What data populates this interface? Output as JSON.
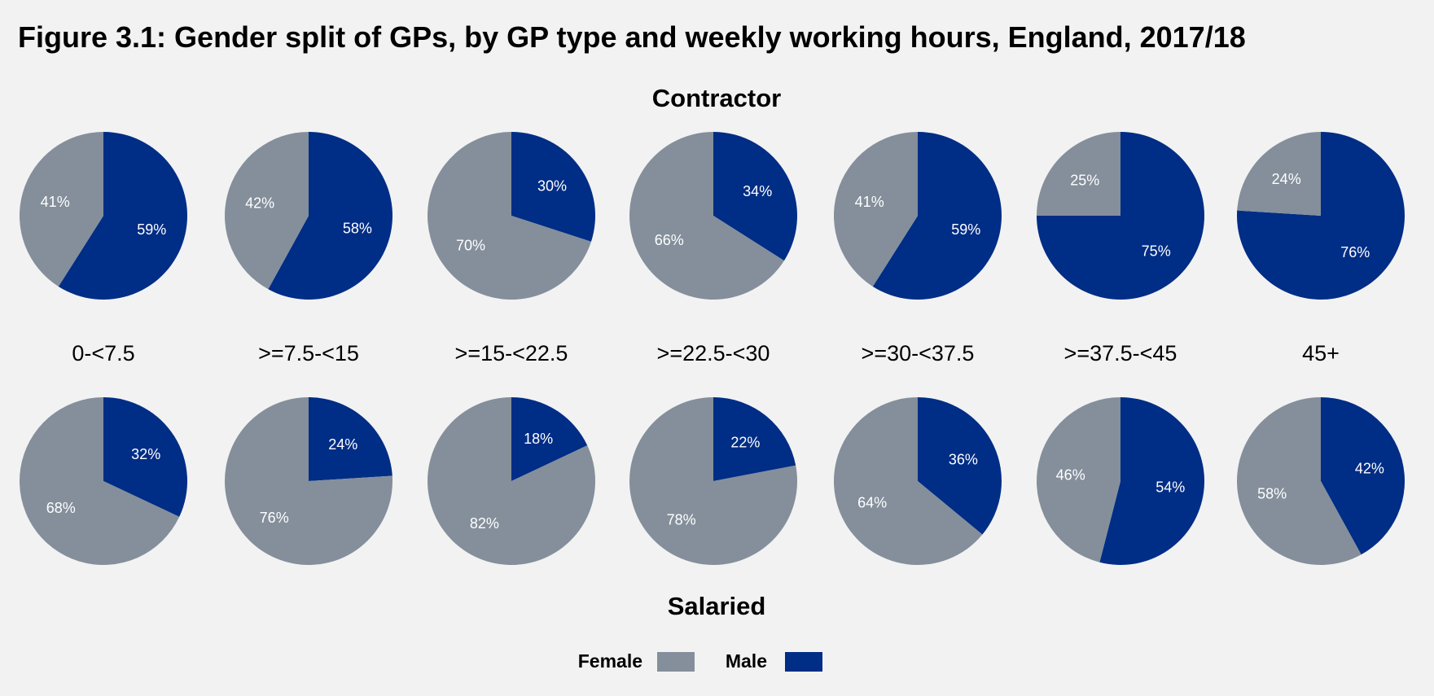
{
  "title": "Figure 3.1: Gender split of GPs, by GP type and weekly working hours, England, 2017/18",
  "colors": {
    "female": "#848f9b",
    "male": "#002d85",
    "background": "#f2f2f2"
  },
  "legend": [
    {
      "name": "Female",
      "color_key": "female"
    },
    {
      "name": "Male",
      "color_key": "male"
    }
  ],
  "chart_data": {
    "type": "pie",
    "title": "Figure 3.1: Gender split of GPs, by GP type and weekly working hours, England, 2017/18",
    "categories": [
      ">=0-<7.5"
    ],
    "hours_bands": [
      "0-<7.5",
      ">=7.5-<15",
      ">=15-<22.5",
      ">=22.5-<30",
      ">=30-<37.5",
      ">=37.5-<45",
      "45+"
    ],
    "series_names": [
      "Female",
      "Male"
    ],
    "groups": [
      {
        "name": "Contractor",
        "pies": [
          {
            "band": "0-<7.5",
            "female": 41,
            "male": 59,
            "female_label": "41%",
            "male_label": "59%"
          },
          {
            "band": ">=7.5-<15",
            "female": 42,
            "male": 58,
            "female_label": "42%",
            "male_label": "58%"
          },
          {
            "band": ">=15-<22.5",
            "female": 70,
            "male": 30,
            "female_label": "70%",
            "male_label": "30%"
          },
          {
            "band": ">=22.5-<30",
            "female": 66,
            "male": 34,
            "female_label": "66%",
            "male_label": "34%"
          },
          {
            "band": ">=30-<37.5",
            "female": 41,
            "male": 59,
            "female_label": "41%",
            "male_label": "59%"
          },
          {
            "band": ">=37.5-<45",
            "female": 25,
            "male": 75,
            "female_label": "25%",
            "male_label": "75%"
          },
          {
            "band": "45+",
            "female": 24,
            "male": 76,
            "female_label": "24%",
            "male_label": "76%"
          }
        ]
      },
      {
        "name": "Salaried",
        "pies": [
          {
            "band": "0-<7.5",
            "female": 68,
            "male": 32,
            "female_label": "68%",
            "male_label": "32%"
          },
          {
            "band": ">=7.5-<15",
            "female": 76,
            "male": 24,
            "female_label": "76%",
            "male_label": "24%"
          },
          {
            "band": ">=15-<22.5",
            "female": 82,
            "male": 18,
            "female_label": "82%",
            "male_label": "18%"
          },
          {
            "band": ">=22.5-<30",
            "female": 78,
            "male": 22,
            "female_label": "78%",
            "male_label": "22%"
          },
          {
            "band": ">=30-<37.5",
            "female": 64,
            "male": 36,
            "female_label": "64%",
            "male_label": "36%"
          },
          {
            "band": ">=37.5-<45",
            "female": 46,
            "male": 54,
            "female_label": "46%",
            "male_label": "54%"
          },
          {
            "band": "45+",
            "female": 58,
            "male": 42,
            "female_label": "58%",
            "male_label": "42%"
          }
        ]
      }
    ],
    "legend_position": "bottom-center"
  }
}
